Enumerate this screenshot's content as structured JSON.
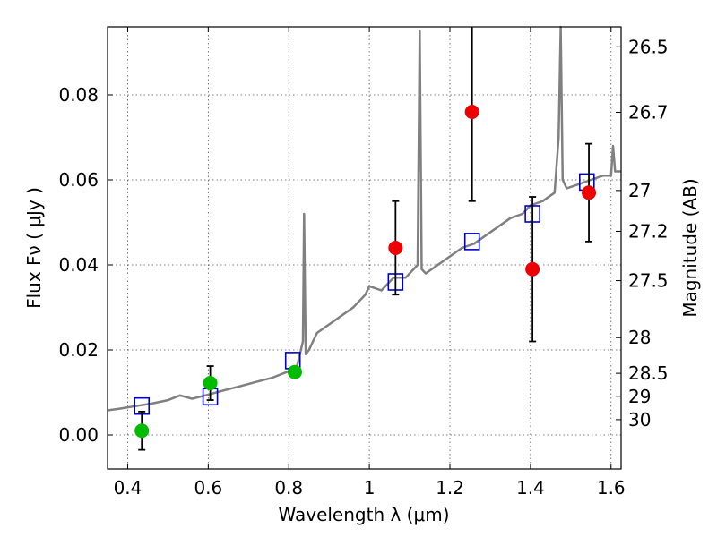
{
  "chart_data": {
    "type": "scatter",
    "xlabel": "Wavelength  λ (μm)",
    "ylabel": "Flux  Fν  ( μJy )",
    "y2label": "Magnitude (AB)",
    "xlim": [
      0.35,
      1.625
    ],
    "ylim": [
      -0.008,
      0.096
    ],
    "xticks": [
      0.4,
      0.6,
      0.8,
      1.0,
      1.2,
      1.4,
      1.6
    ],
    "xtick_labels": [
      "0.4",
      "0.6",
      "0.8",
      "1",
      "1.2",
      "1.4",
      "1.6"
    ],
    "yticks": [
      0.0,
      0.02,
      0.04,
      0.06,
      0.08
    ],
    "ytick_labels": [
      "0.00",
      "0.02",
      "0.04",
      "0.06",
      "0.08"
    ],
    "mag_ticks": [
      {
        "label": "26.5",
        "flux": 0.0913
      },
      {
        "label": "26.7",
        "flux": 0.0759
      },
      {
        "label": "27",
        "flux": 0.0575
      },
      {
        "label": "27.2",
        "flux": 0.0479
      },
      {
        "label": "27.5",
        "flux": 0.0363
      },
      {
        "label": "28",
        "flux": 0.0229
      },
      {
        "label": "28.5",
        "flux": 0.0145
      },
      {
        "label": "29",
        "flux": 0.0091
      },
      {
        "label": "30",
        "flux": 0.0036
      }
    ],
    "grid": true,
    "colors": {
      "spectrum": "#808080",
      "model_points": "#0000cc",
      "green_points": "#00bb00",
      "red_points": "#ee0000",
      "errorbar": "#000000"
    },
    "series": [
      {
        "kind": "line",
        "x": [
          0.35,
          0.38,
          0.42,
          0.46,
          0.5,
          0.53,
          0.56,
          0.6,
          0.64,
          0.68,
          0.72,
          0.76,
          0.8,
          0.82,
          0.835,
          0.838,
          0.842,
          0.85,
          0.87,
          0.9,
          0.93,
          0.96,
          0.99,
          1.0,
          1.03,
          1.06,
          1.09,
          1.12,
          1.125,
          1.13,
          1.14,
          1.17,
          1.2,
          1.23,
          1.26,
          1.29,
          1.32,
          1.35,
          1.38,
          1.4,
          1.43,
          1.46,
          1.47,
          1.475,
          1.48,
          1.49,
          1.52,
          1.55,
          1.58,
          1.6,
          1.605,
          1.61,
          1.625
        ],
        "y": [
          0.0058,
          0.0062,
          0.0068,
          0.0074,
          0.0082,
          0.0093,
          0.0085,
          0.0095,
          0.0105,
          0.0115,
          0.0125,
          0.0135,
          0.015,
          0.016,
          0.022,
          0.052,
          0.019,
          0.02,
          0.024,
          0.026,
          0.028,
          0.03,
          0.033,
          0.035,
          0.034,
          0.037,
          0.037,
          0.04,
          0.095,
          0.039,
          0.038,
          0.04,
          0.042,
          0.044,
          0.045,
          0.047,
          0.049,
          0.051,
          0.052,
          0.054,
          0.055,
          0.057,
          0.07,
          0.096,
          0.06,
          0.058,
          0.059,
          0.06,
          0.061,
          0.061,
          0.068,
          0.062,
          0.062
        ]
      },
      {
        "kind": "squares",
        "x": [
          0.435,
          0.605,
          0.81,
          1.065,
          1.255,
          1.405,
          1.54
        ],
        "y": [
          0.0068,
          0.009,
          0.0175,
          0.036,
          0.0455,
          0.052,
          0.0595
        ]
      },
      {
        "kind": "circles",
        "color": "green",
        "x": [
          0.435,
          0.605,
          0.815
        ],
        "y": [
          0.001,
          0.0122,
          0.0148
        ],
        "yerr": [
          0.0045,
          0.004,
          0.0
        ]
      },
      {
        "kind": "circles",
        "color": "red",
        "x": [
          1.065,
          1.255,
          1.405,
          1.545
        ],
        "y": [
          0.044,
          0.076,
          0.039,
          0.057
        ],
        "yerr": [
          0.011,
          0.021,
          0.017,
          0.0115
        ]
      }
    ]
  }
}
